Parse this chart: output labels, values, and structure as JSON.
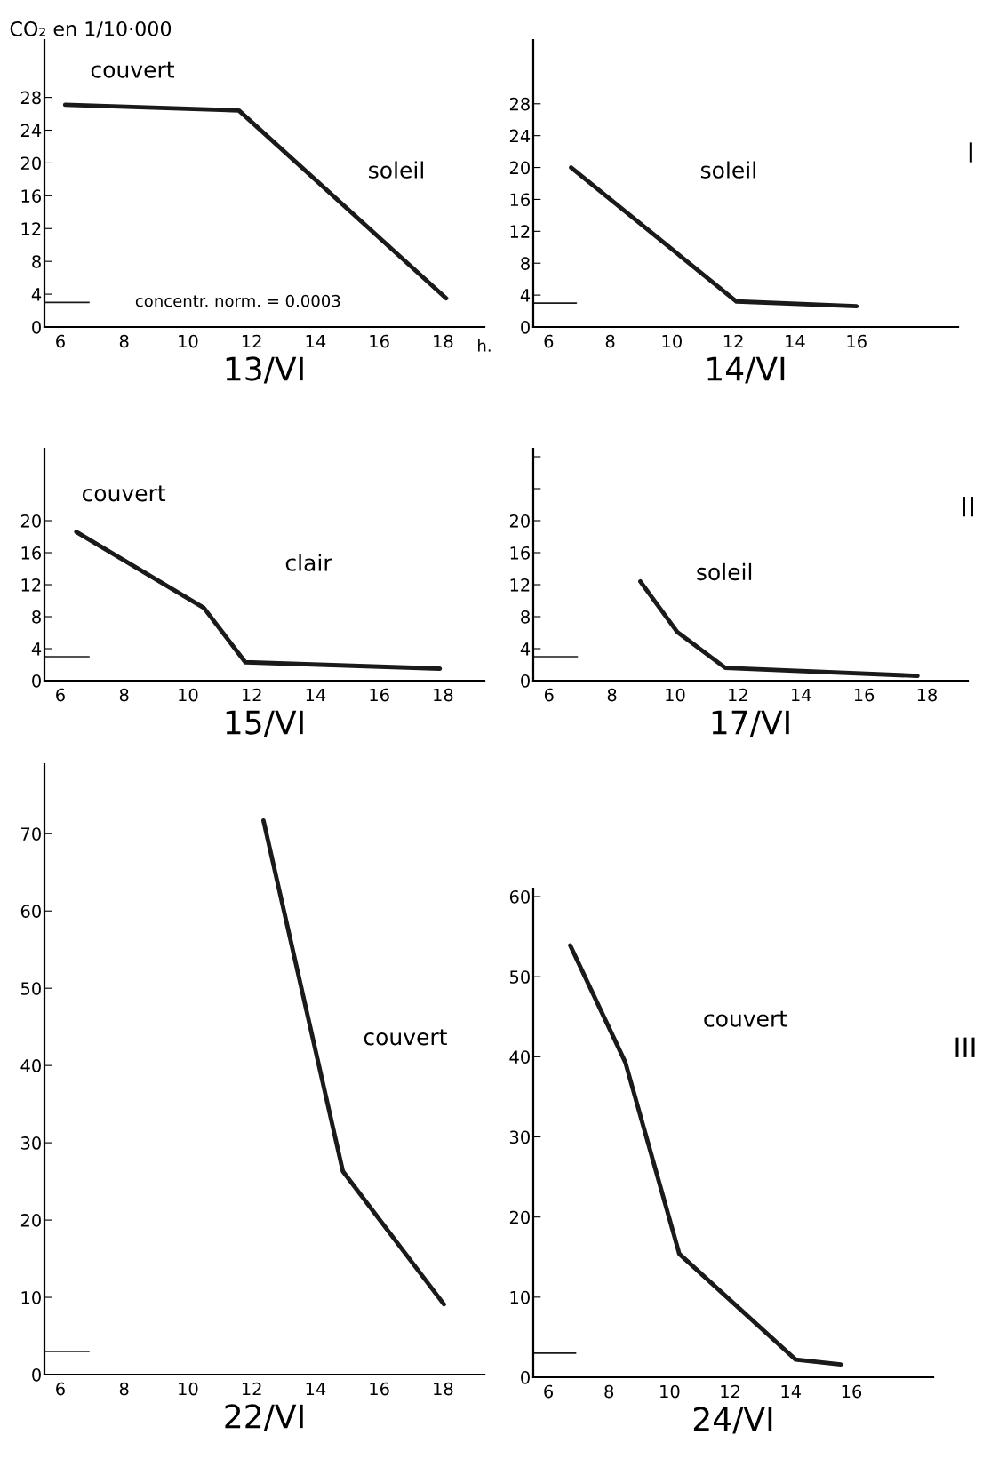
{
  "chart_data": [
    {
      "type": "line",
      "xlabel": "13/VI",
      "ylabel": "CO₂ en 1/10·000",
      "series": [
        {
          "color": "#1a1a1a",
          "x": [
            6.15,
            11.6,
            18.1
          ],
          "values": [
            27.1,
            26.4,
            3.5
          ]
        },
        {
          "type": "line",
          "color": "#1a1a1a",
          "x": [
            5.5,
            6.9
          ],
          "values": [
            3,
            3
          ]
        }
      ],
      "xlim": [
        5.5,
        19.3
      ],
      "ylim": [
        0,
        35
      ],
      "xticks": [
        6,
        8,
        10,
        12,
        14,
        16,
        18
      ],
      "yticks": [
        0,
        4,
        8,
        12,
        16,
        20,
        24,
        28
      ],
      "annotations": [
        "couvert",
        "soleil",
        "h.",
        "concentr. norm. = 0.0003"
      ]
    },
    {
      "type": "line",
      "xlabel": "14/VI",
      "series": [
        {
          "color": "#1a1a1a",
          "x": [
            6.73,
            12.1,
            16
          ],
          "values": [
            20,
            3.2,
            2.6
          ]
        },
        {
          "type": "line",
          "color": "#1a1a1a",
          "x": [
            5.5,
            6.9
          ],
          "values": [
            3,
            3
          ]
        }
      ],
      "xlim": [
        5.5,
        19.3
      ],
      "ylim": [
        0,
        36
      ],
      "xticks": [
        6,
        8,
        10,
        12,
        14,
        16
      ],
      "yticks": [
        0,
        4,
        8,
        12,
        16,
        20,
        24,
        28
      ],
      "annotations": [
        "soleil",
        "I"
      ]
    },
    {
      "type": "line",
      "xlabel": "15/VI",
      "series": [
        {
          "color": "#1a1a1a",
          "x": [
            6.5,
            10.5,
            11.8,
            17.9
          ],
          "values": [
            18.6,
            9.1,
            2.3,
            1.5
          ]
        },
        {
          "type": "line",
          "color": "#1a1a1a",
          "x": [
            5.5,
            6.9
          ],
          "values": [
            3,
            3
          ]
        }
      ],
      "xlim": [
        5.5,
        19.3
      ],
      "ylim": [
        0,
        29
      ],
      "xticks": [
        6,
        8,
        10,
        12,
        14,
        16,
        18
      ],
      "yticks": [
        0,
        4,
        8,
        12,
        16,
        20
      ],
      "annotations": [
        "couvert",
        "clair"
      ]
    },
    {
      "type": "line",
      "xlabel": "17/VI",
      "series": [
        {
          "color": "#1a1a1a",
          "x": [
            8.9,
            10.07,
            11.6,
            17.7
          ],
          "values": [
            12.4,
            6.1,
            1.6,
            0.6
          ]
        },
        {
          "type": "line",
          "color": "#1a1a1a",
          "x": [
            5.5,
            6.9
          ],
          "values": [
            3,
            3
          ]
        }
      ],
      "xlim": [
        5.5,
        19.3
      ],
      "ylim": [
        0,
        29
      ],
      "xticks": [
        6,
        8,
        10,
        12,
        14,
        16,
        18
      ],
      "yticks": [
        0,
        4,
        8,
        12,
        16,
        20,
        {
          "value": 24,
          "label": null
        },
        {
          "value": 28,
          "label": null
        }
      ],
      "annotations": [
        "soleil",
        "II"
      ]
    },
    {
      "type": "line",
      "xlabel": "22/VI",
      "series": [
        {
          "color": "#1a1a1a",
          "x": [
            12.37,
            14.86,
            18.03
          ],
          "values": [
            71.7,
            26.3,
            9.1
          ]
        },
        {
          "type": "line",
          "color": "#1a1a1a",
          "x": [
            5.5,
            6.9
          ],
          "values": [
            3,
            3
          ]
        }
      ],
      "xlim": [
        5.5,
        19.3
      ],
      "ylim": [
        0,
        79
      ],
      "xticks": [
        6,
        8,
        10,
        12,
        14,
        16,
        18
      ],
      "yticks": [
        0,
        10,
        20,
        30,
        40,
        50,
        60,
        70
      ],
      "annotations": [
        "couvert"
      ]
    },
    {
      "type": "line",
      "xlabel": "24/VI",
      "series": [
        {
          "color": "#1a1a1a",
          "x": [
            6.72,
            8.54,
            10.32,
            14.16,
            15.65
          ],
          "values": [
            53.9,
            39.3,
            15.4,
            2.2,
            1.6
          ]
        },
        {
          "type": "line",
          "color": "#1a1a1a",
          "x": [
            5.5,
            6.9
          ],
          "values": [
            3,
            3
          ]
        }
      ],
      "xlim": [
        5.5,
        18.7
      ],
      "ylim": [
        0,
        61
      ],
      "xticks": [
        6,
        8,
        10,
        12,
        14,
        16
      ],
      "yticks": [
        0,
        10,
        20,
        30,
        40,
        50,
        60
      ],
      "annotations": [
        "couvert",
        "III"
      ]
    }
  ]
}
